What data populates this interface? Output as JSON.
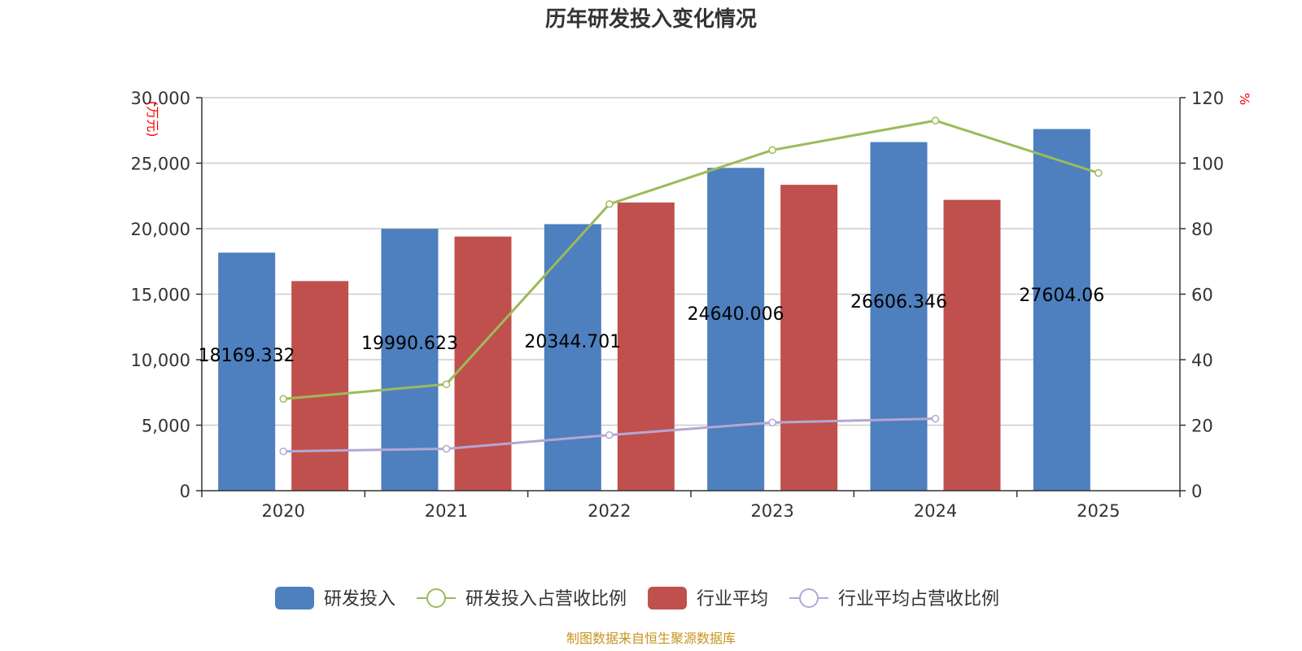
{
  "chart_data": {
    "type": "bar",
    "title": "历年研发投入变化情况",
    "categories": [
      "2020",
      "2021",
      "2022",
      "2023",
      "2024",
      "2025"
    ],
    "y_left": {
      "unit": "(万元)",
      "ylim": [
        0,
        30000
      ],
      "ticks": [
        "0",
        "5,000",
        "10,000",
        "15,000",
        "20,000",
        "25,000",
        "30,000"
      ],
      "tick_values": [
        0,
        5000,
        10000,
        15000,
        20000,
        25000,
        30000
      ]
    },
    "y_right": {
      "unit": "%",
      "ylim": [
        0,
        120
      ],
      "ticks": [
        "0",
        "20",
        "40",
        "60",
        "80",
        "100",
        "120"
      ],
      "tick_values": [
        0,
        20,
        40,
        60,
        80,
        100,
        120
      ]
    },
    "series": [
      {
        "name": "研发投入",
        "type": "bar",
        "axis": "left",
        "color": "#4e7fbe",
        "values": [
          18169.332,
          19990.623,
          20344.701,
          24640.006,
          26606.346,
          27604.06
        ],
        "labels": [
          "18169.332",
          "19990.623",
          "20344.701",
          "24640.006",
          "26606.346",
          "27604.06"
        ]
      },
      {
        "name": "研发投入占营收比例",
        "type": "line",
        "axis": "right",
        "color": "#9bbb59",
        "values": [
          28,
          32.5,
          87.5,
          104,
          113,
          97
        ]
      },
      {
        "name": "行业平均",
        "type": "bar",
        "axis": "left",
        "color": "#c0504d",
        "values": [
          16000,
          19400,
          22000,
          23350,
          22200,
          null
        ]
      },
      {
        "name": "行业平均占营收比例",
        "type": "line",
        "axis": "right",
        "color": "#b3a7d3",
        "values": [
          12,
          12.8,
          17,
          20.8,
          22,
          null
        ]
      }
    ],
    "grid": true,
    "legend_position": "bottom"
  },
  "source_text": "制图数据来自恒生聚源数据库"
}
